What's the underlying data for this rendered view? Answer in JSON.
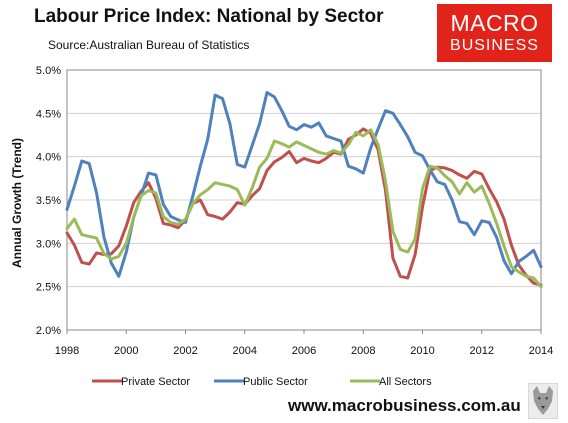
{
  "header": {
    "title": "Labour Price Index: National by Sector",
    "subtitle": "Source:Australian Bureau of Statistics"
  },
  "logo": {
    "line1": "MACRO",
    "line2": "BUSINESS"
  },
  "footer": {
    "website": "www.macrobusiness.com.au"
  },
  "colors": {
    "private": "#c0504d",
    "public": "#4f81bd",
    "all": "#9bbb59",
    "logo_bg": "#e2231a"
  },
  "icons": {
    "brand": "wolf-logo-icon"
  },
  "chart_data": {
    "type": "line",
    "title": "Labour Price Index: National by Sector",
    "ylabel": "Annual Growth (Trend)",
    "xlabel": "",
    "xlim": [
      1998,
      2014
    ],
    "ylim": [
      2.0,
      5.0
    ],
    "xticks": [
      "1998",
      "2000",
      "2002",
      "2004",
      "2006",
      "2008",
      "2010",
      "2012",
      "2014"
    ],
    "yticks": [
      "2.0%",
      "2.5%",
      "3.0%",
      "3.5%",
      "4.0%",
      "4.5%",
      "5.0%"
    ],
    "grid": true,
    "legend": "bottom",
    "x": [
      1998.0,
      1998.25,
      1998.5,
      1998.75,
      1999.0,
      1999.25,
      1999.5,
      1999.75,
      2000.0,
      2000.25,
      2000.5,
      2000.75,
      2001.0,
      2001.25,
      2001.5,
      2001.75,
      2002.0,
      2002.25,
      2002.5,
      2002.75,
      2003.0,
      2003.25,
      2003.5,
      2003.75,
      2004.0,
      2004.25,
      2004.5,
      2004.75,
      2005.0,
      2005.25,
      2005.5,
      2005.75,
      2006.0,
      2006.25,
      2006.5,
      2006.75,
      2007.0,
      2007.25,
      2007.5,
      2007.75,
      2008.0,
      2008.25,
      2008.5,
      2008.75,
      2009.0,
      2009.25,
      2009.5,
      2009.75,
      2010.0,
      2010.25,
      2010.5,
      2010.75,
      2011.0,
      2011.25,
      2011.5,
      2011.75,
      2012.0,
      2012.25,
      2012.5,
      2012.75,
      2013.0,
      2013.25,
      2013.5,
      2013.75,
      2014.0
    ],
    "series": [
      {
        "name": "Private Sector",
        "color": "#c0504d",
        "values": [
          3.12,
          2.98,
          2.78,
          2.76,
          2.89,
          2.87,
          2.88,
          2.97,
          3.2,
          3.47,
          3.6,
          3.7,
          3.52,
          3.23,
          3.21,
          3.18,
          3.27,
          3.46,
          3.5,
          3.33,
          3.31,
          3.28,
          3.36,
          3.47,
          3.45,
          3.55,
          3.63,
          3.84,
          3.94,
          3.99,
          4.06,
          3.93,
          3.98,
          3.95,
          3.93,
          3.98,
          4.05,
          4.03,
          4.2,
          4.25,
          4.32,
          4.27,
          4.08,
          3.61,
          2.83,
          2.62,
          2.6,
          2.87,
          3.42,
          3.84,
          3.88,
          3.87,
          3.84,
          3.79,
          3.75,
          3.83,
          3.8,
          3.63,
          3.48,
          3.28,
          2.98,
          2.75,
          2.63,
          2.54,
          2.52
        ]
      },
      {
        "name": "Public Sector",
        "color": "#4f81bd",
        "values": [
          3.39,
          3.66,
          3.95,
          3.92,
          3.58,
          3.07,
          2.77,
          2.62,
          2.9,
          3.3,
          3.55,
          3.81,
          3.79,
          3.45,
          3.31,
          3.27,
          3.24,
          3.55,
          3.89,
          4.2,
          4.71,
          4.67,
          4.38,
          3.91,
          3.88,
          4.13,
          4.38,
          4.74,
          4.69,
          4.53,
          4.35,
          4.31,
          4.37,
          4.34,
          4.39,
          4.24,
          4.21,
          4.18,
          3.89,
          3.86,
          3.81,
          4.1,
          4.32,
          4.53,
          4.5,
          4.37,
          4.23,
          4.05,
          4.01,
          3.85,
          3.71,
          3.68,
          3.5,
          3.25,
          3.23,
          3.1,
          3.26,
          3.24,
          3.07,
          2.8,
          2.65,
          2.79,
          2.85,
          2.92,
          2.73
        ]
      },
      {
        "name": "All Sectors",
        "color": "#9bbb59",
        "values": [
          3.17,
          3.28,
          3.1,
          3.08,
          3.06,
          2.88,
          2.82,
          2.85,
          3.0,
          3.3,
          3.55,
          3.61,
          3.58,
          3.31,
          3.24,
          3.22,
          3.28,
          3.46,
          3.56,
          3.62,
          3.7,
          3.68,
          3.66,
          3.62,
          3.44,
          3.64,
          3.88,
          3.98,
          4.18,
          4.15,
          4.11,
          4.17,
          4.13,
          4.09,
          4.05,
          4.03,
          4.07,
          4.04,
          4.14,
          4.28,
          4.24,
          4.31,
          4.14,
          3.72,
          3.14,
          2.93,
          2.9,
          3.05,
          3.63,
          3.89,
          3.87,
          3.78,
          3.71,
          3.57,
          3.7,
          3.59,
          3.66,
          3.46,
          3.23,
          2.97,
          2.73,
          2.67,
          2.62,
          2.6,
          2.5
        ]
      }
    ]
  }
}
